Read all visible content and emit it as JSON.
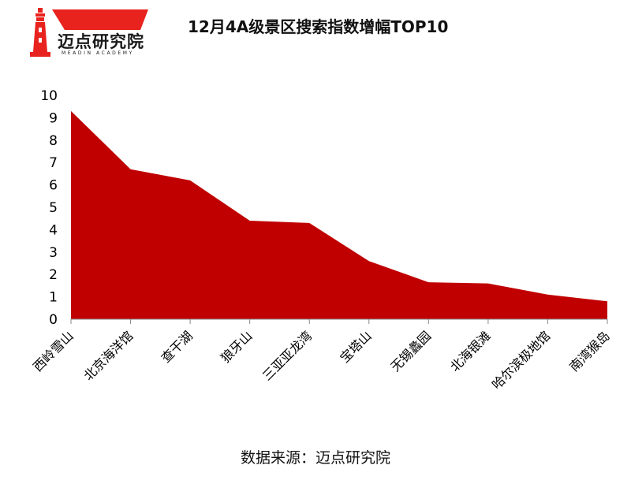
{
  "header": {
    "title": "12月4A级景区搜索指数增幅TOP10",
    "logo_text": "迈点研究院",
    "logo_sub": "MEADIN ACADEMY"
  },
  "footer": {
    "source": "数据来源：迈点研究院"
  },
  "colors": {
    "area": "#c00000",
    "logo_red": "#e8231e"
  },
  "chart_data": {
    "type": "area",
    "title": "12月4A级景区搜索指数增幅TOP10",
    "xlabel": "",
    "ylabel": "",
    "ylim": [
      0,
      10
    ],
    "yticks": [
      "0",
      "1",
      "2",
      "3",
      "4",
      "5",
      "6",
      "7",
      "8",
      "9",
      "10"
    ],
    "grid": false,
    "categories": [
      "西岭雪山",
      "北京海洋馆",
      "查干湖",
      "狼牙山",
      "三亚亚龙湾",
      "宝塔山",
      "无锡蠡园",
      "北海银滩",
      "哈尔滨极地馆",
      "南湾猴岛"
    ],
    "values": [
      9.3,
      6.7,
      6.2,
      4.4,
      4.3,
      2.6,
      1.65,
      1.6,
      1.1,
      0.8
    ]
  }
}
